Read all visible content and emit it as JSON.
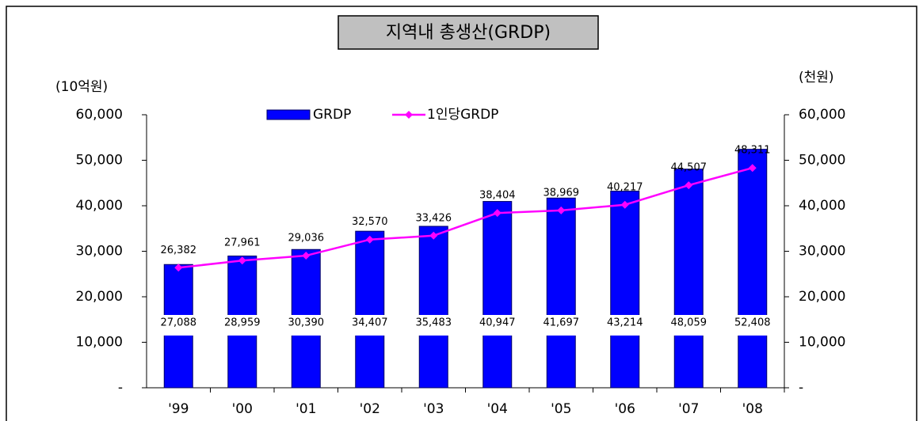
{
  "chart_data": {
    "type": "bar-line",
    "title": "지역내 총생산(GRDP)",
    "y_label": "(10억원)",
    "y2_label": "(천원)",
    "categories": [
      "'99",
      "'00",
      "'01",
      "'02",
      "'03",
      "'04",
      "'05",
      "'06",
      "'07",
      "'08"
    ],
    "series": [
      {
        "name": "GRDP",
        "type": "bar",
        "color": "#0000ff",
        "values": [
          27088,
          28959,
          30390,
          34407,
          35483,
          40947,
          41697,
          43214,
          48059,
          52408
        ],
        "value_labels": [
          "27,088",
          "28,959",
          "30,390",
          "34,407",
          "35,483",
          "40,947",
          "41,697",
          "43,214",
          "48,059",
          "52,408"
        ]
      },
      {
        "name": "1인당GRDP",
        "type": "line",
        "axis": "y2",
        "color": "#ff00ff",
        "values": [
          26382,
          27961,
          29036,
          32570,
          33426,
          38404,
          38969,
          40217,
          44507,
          48311
        ],
        "value_labels": [
          "26,382",
          "27,961",
          "29,036",
          "32,570",
          "33,426",
          "38,404",
          "38,969",
          "40,217",
          "44,507",
          "48,311"
        ]
      }
    ],
    "ylim": [
      0,
      60000
    ],
    "yticks": [
      {
        "value": 0,
        "label": "-"
      },
      {
        "value": 10000,
        "label": "10,000"
      },
      {
        "value": 20000,
        "label": "20,000"
      },
      {
        "value": 30000,
        "label": "30,000"
      },
      {
        "value": 40000,
        "label": "40,000"
      },
      {
        "value": 50000,
        "label": "50,000"
      },
      {
        "value": 60000,
        "label": "60,000"
      }
    ],
    "y2lim": [
      0,
      60000
    ],
    "y2ticks": [
      {
        "value": 0,
        "label": "-"
      },
      {
        "value": 10000,
        "label": "10,000"
      },
      {
        "value": 20000,
        "label": "20,000"
      },
      {
        "value": 30000,
        "label": "30,000"
      },
      {
        "value": 40000,
        "label": "40,000"
      },
      {
        "value": 50000,
        "label": "50,000"
      },
      {
        "value": 60000,
        "label": "60,000"
      }
    ],
    "legend": "top"
  }
}
